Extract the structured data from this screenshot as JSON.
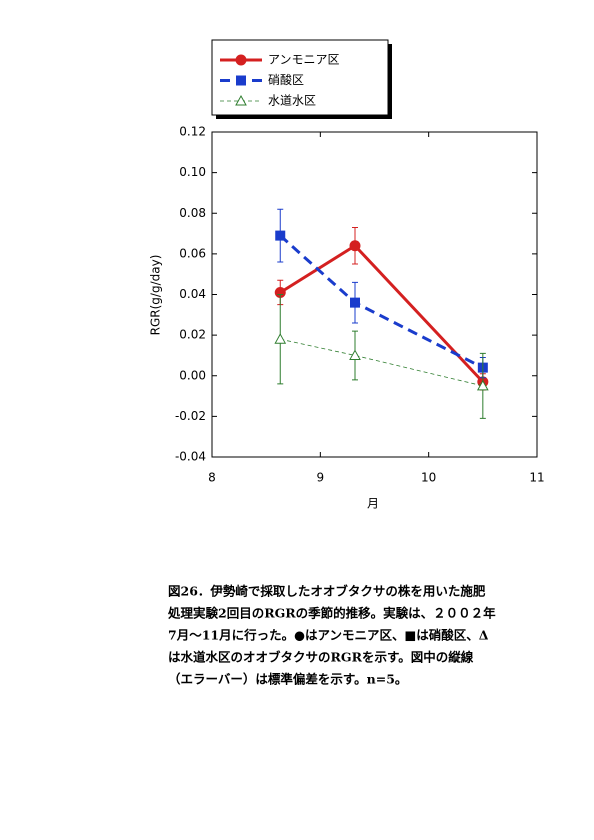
{
  "chart_data": {
    "type": "line",
    "xlabel": "月",
    "ylabel": "RGR(g/g/day)",
    "x": [
      8.63,
      9.32,
      10.5
    ],
    "series": [
      {
        "name": "アンモニア区",
        "color": "#d42020",
        "line_style": "solid",
        "marker": "circle",
        "values": [
          0.041,
          0.064,
          -0.003
        ],
        "errors": [
          0.006,
          0.009,
          0.004
        ]
      },
      {
        "name": "硝酸区",
        "color": "#1a3ccc",
        "line_style": "dashed",
        "marker": "square",
        "values": [
          0.069,
          0.036,
          0.004
        ],
        "errors": [
          0.013,
          0.01,
          0.005
        ]
      },
      {
        "name": "水道水区",
        "color": "#2e7d2e",
        "line_style": "thin-dashed",
        "marker": "triangle",
        "values": [
          0.018,
          0.01,
          -0.005
        ],
        "errors": [
          0.022,
          0.012,
          0.016
        ]
      }
    ],
    "xlim": [
      8,
      11
    ],
    "xticks": [
      8,
      9,
      10,
      11
    ],
    "ylim": [
      -0.04,
      0.12
    ],
    "yticks": [
      -0.04,
      -0.02,
      {
        "value": 0,
        "label": "0.00"
      },
      0.02,
      0.04,
      0.06,
      0.08,
      {
        "value": 0.1,
        "label": "0.10"
      },
      0.12
    ]
  },
  "caption": {
    "lines": [
      "図26．伊勢崎で採取したオオブタクサの株を用いた施肥",
      "処理実験2回目のRGRの季節的推移。実験は、２００２年",
      "7月～11月に行った。●はアンモニア区、■は硝酸区、Δ",
      "は水道水区のオオブタクサのRGRを示す。図中の縦線",
      "（エラーバー）は標準偏差を示す。n=5。"
    ]
  }
}
